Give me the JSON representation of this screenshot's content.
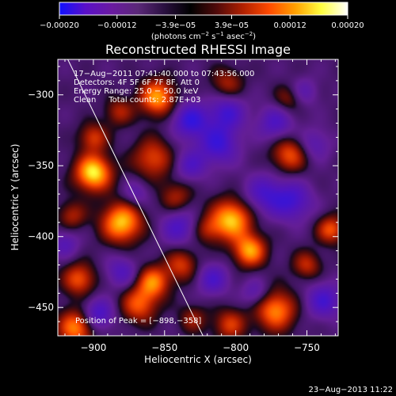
{
  "chart_data": {
    "type": "heatmap",
    "title": "Reconstructed RHESSI Image",
    "xlabel": "Heliocentric X (arcsec)",
    "ylabel": "Heliocentric Y (arcsec)",
    "xlim": [
      -925,
      -728
    ],
    "ylim": [
      -470,
      -275
    ],
    "x_ticks": [
      -900,
      -850,
      -800,
      -750
    ],
    "x_tick_labels": [
      "−900",
      "−850",
      "−800",
      "−750"
    ],
    "y_ticks": [
      -300,
      -350,
      -400,
      -450
    ],
    "y_tick_labels": [
      "−300",
      "−350",
      "−400",
      "−450"
    ],
    "colorbar": {
      "range": [
        -0.0002,
        0.0002
      ],
      "ticks": [
        -0.0002,
        -0.00012,
        -3.9e-05,
        3.9e-05,
        0.00012,
        0.0002
      ],
      "tick_labels": [
        "−0.00020",
        "−0.00012",
        "−3.9e−05",
        "3.9e−05",
        "0.00012",
        "0.00020"
      ],
      "unit_prefix": "(photons cm",
      "unit_exp1": "−2",
      "unit_mid1": " s",
      "unit_exp2": "−1",
      "unit_mid2": " asec",
      "unit_exp3": "−2",
      "unit_suffix": ")",
      "colors": [
        "#1010ff",
        "#5a10c8",
        "#6a1aa0",
        "#5a2878",
        "#2a1040",
        "#000000",
        "#500a0a",
        "#b02000",
        "#ff4a00",
        "#ffa000",
        "#ffff40",
        "#ffffff"
      ]
    },
    "annotations": [
      "17−Aug−2011 07:41:40.000 to 07:43:56.000",
      "Detectors: 4F 5F 6F 7F 8F, Att 0",
      "Energy Range: 25.0 − 50.0 keV",
      "Clean     Total counts: 2.87E+03"
    ],
    "peak_label": "Position of Peak = [−898,−358]",
    "peak": {
      "x": -898,
      "y": -358
    },
    "limb_line": {
      "x": [
        -918,
        -823
      ],
      "y": [
        -275,
        -470
      ],
      "color": "#ffffff"
    },
    "blobs": [
      {
        "x": -900,
        "y": -355,
        "v": 1.0,
        "r": 9
      },
      {
        "x": -880,
        "y": -390,
        "v": 0.9,
        "r": 10
      },
      {
        "x": -855,
        "y": -302,
        "v": 0.8,
        "r": 9
      },
      {
        "x": -858,
        "y": -345,
        "v": 0.55,
        "r": 10
      },
      {
        "x": -762,
        "y": -342,
        "v": 0.6,
        "r": 9
      },
      {
        "x": -803,
        "y": -388,
        "v": 0.9,
        "r": 10
      },
      {
        "x": -790,
        "y": -410,
        "v": 0.8,
        "r": 8
      },
      {
        "x": -806,
        "y": -292,
        "v": 0.4,
        "r": 8
      },
      {
        "x": -842,
        "y": -372,
        "v": 0.4,
        "r": 8
      },
      {
        "x": -838,
        "y": -420,
        "v": 0.5,
        "r": 8
      },
      {
        "x": -858,
        "y": -432,
        "v": 0.7,
        "r": 8
      },
      {
        "x": -868,
        "y": -448,
        "v": 0.6,
        "r": 9
      },
      {
        "x": -910,
        "y": -430,
        "v": 0.6,
        "r": 8
      },
      {
        "x": -912,
        "y": -464,
        "v": 0.75,
        "r": 9
      },
      {
        "x": -915,
        "y": -385,
        "v": 0.4,
        "r": 7
      },
      {
        "x": -900,
        "y": -330,
        "v": 0.5,
        "r": 7
      },
      {
        "x": -772,
        "y": -452,
        "v": 0.75,
        "r": 10
      },
      {
        "x": -733,
        "y": -395,
        "v": 0.6,
        "r": 7
      },
      {
        "x": -763,
        "y": -303,
        "v": 0.35,
        "r": 7
      },
      {
        "x": -882,
        "y": -312,
        "v": 0.4,
        "r": 7
      },
      {
        "x": -804,
        "y": -462,
        "v": 0.5,
        "r": 8
      },
      {
        "x": -830,
        "y": -458,
        "v": 0.35,
        "r": 7
      },
      {
        "x": -750,
        "y": -420,
        "v": 0.45,
        "r": 7
      },
      {
        "x": -820,
        "y": -395,
        "v": 0.35,
        "r": 7
      },
      {
        "x": -897,
        "y": -455,
        "v": -0.55,
        "r": 8
      },
      {
        "x": -840,
        "y": -393,
        "v": -0.45,
        "r": 9
      },
      {
        "x": -780,
        "y": -370,
        "v": -0.45,
        "r": 10
      },
      {
        "x": -760,
        "y": -375,
        "v": -0.5,
        "r": 10
      },
      {
        "x": -772,
        "y": -320,
        "v": -0.45,
        "r": 9
      },
      {
        "x": -812,
        "y": -335,
        "v": -0.55,
        "r": 10
      },
      {
        "x": -832,
        "y": -318,
        "v": -0.6,
        "r": 9
      },
      {
        "x": -806,
        "y": -312,
        "v": -0.5,
        "r": 9
      },
      {
        "x": -738,
        "y": -445,
        "v": -0.5,
        "r": 9
      },
      {
        "x": -816,
        "y": -430,
        "v": -0.45,
        "r": 8
      },
      {
        "x": -832,
        "y": -350,
        "v": -0.4,
        "r": 8
      },
      {
        "x": -920,
        "y": -405,
        "v": -0.35,
        "r": 7
      },
      {
        "x": -880,
        "y": -425,
        "v": -0.4,
        "r": 8
      },
      {
        "x": -870,
        "y": -370,
        "v": -0.3,
        "r": 7
      },
      {
        "x": -745,
        "y": -335,
        "v": -0.35,
        "r": 8
      },
      {
        "x": -752,
        "y": -298,
        "v": -0.3,
        "r": 7
      },
      {
        "x": -786,
        "y": -440,
        "v": -0.35,
        "r": 7
      }
    ]
  },
  "footer": {
    "date": "23−Aug−2013 11:22"
  }
}
